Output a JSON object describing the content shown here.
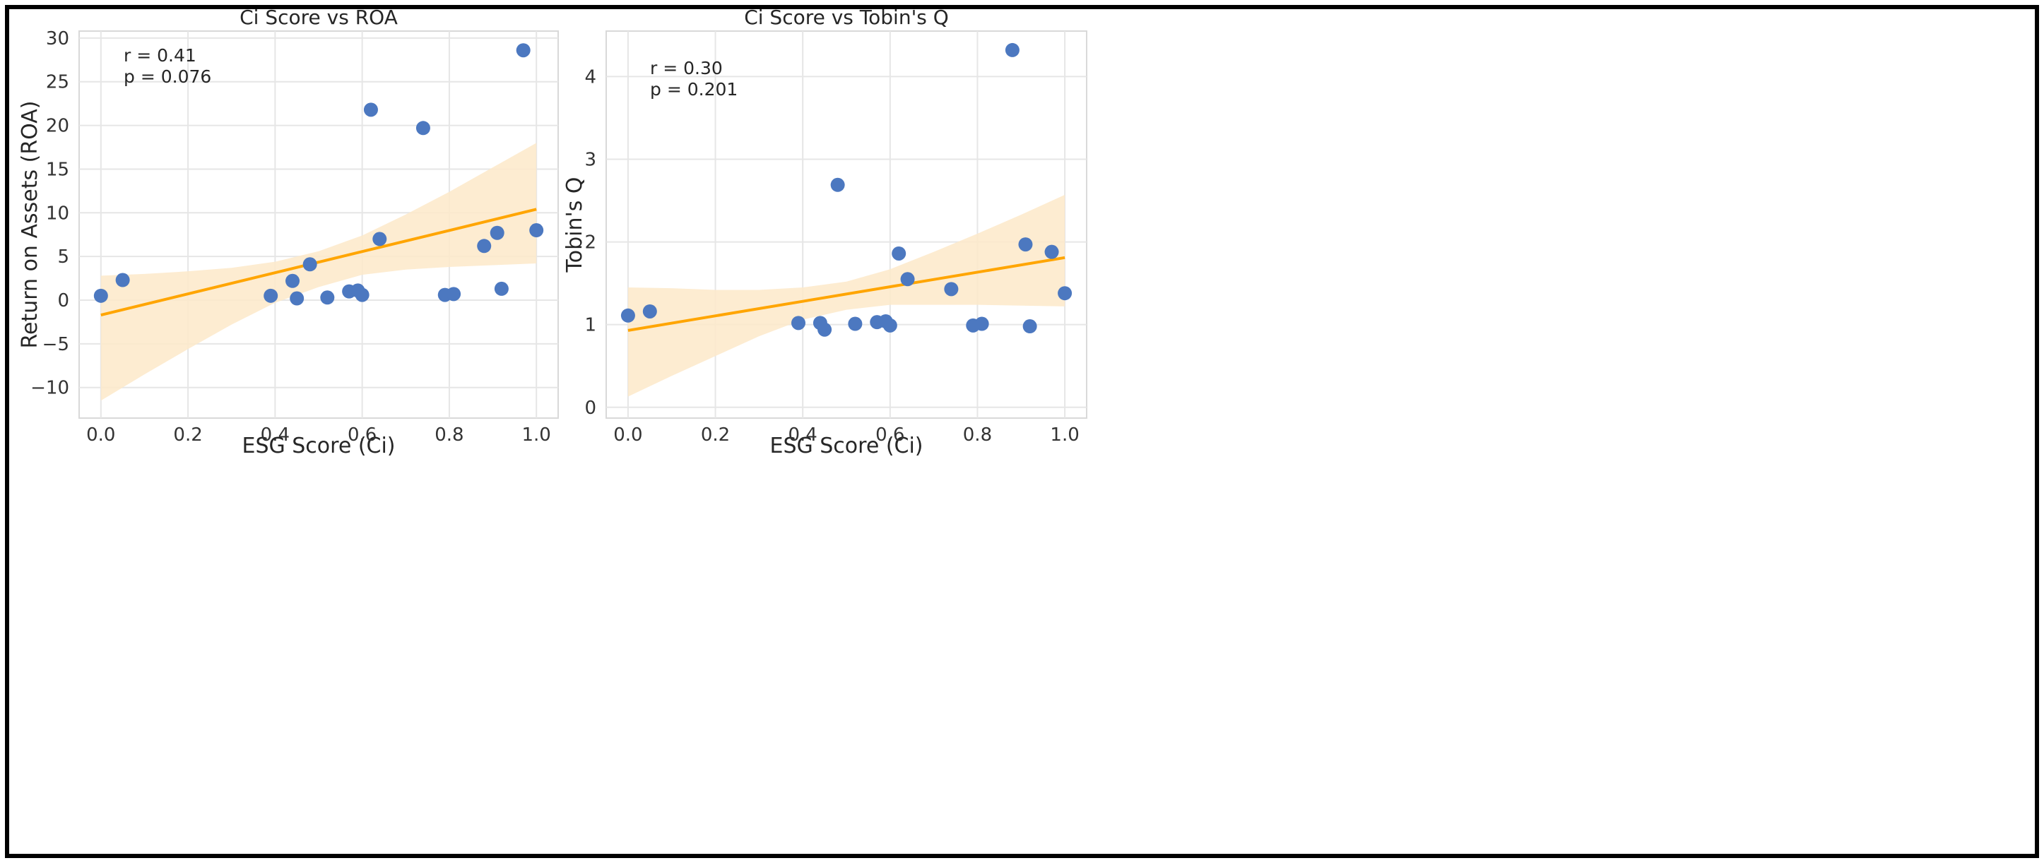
{
  "chart_data": [
    {
      "type": "scatter",
      "title": "Ci Score vs ROA",
      "xlabel": "ESG Score (Ci)",
      "ylabel": "Return on Assets (ROA)",
      "xlim": [
        -0.05,
        1.05
      ],
      "ylim": [
        -13.5,
        30.8
      ],
      "xticks": [
        0.0,
        0.2,
        0.4,
        0.6,
        0.8,
        1.0
      ],
      "xtick_labels": [
        "0.0",
        "0.2",
        "0.4",
        "0.6",
        "0.8",
        "1.0"
      ],
      "yticks": [
        -10,
        -5,
        0,
        5,
        10,
        15,
        20,
        25,
        30
      ],
      "ytick_labels": [
        "−10",
        "−5",
        "0",
        "5",
        "10",
        "15",
        "20",
        "25",
        "30"
      ],
      "grid": true,
      "annotation_lines": [
        "r = 0.41",
        "p = 0.076"
      ],
      "point_color": "#4c78c0",
      "x": [
        0.0,
        0.05,
        0.39,
        0.44,
        0.45,
        0.48,
        0.52,
        0.57,
        0.59,
        0.6,
        0.62,
        0.64,
        0.74,
        0.79,
        0.81,
        0.88,
        0.91,
        0.92,
        0.97,
        1.0
      ],
      "y": [
        0.5,
        2.3,
        0.5,
        2.2,
        0.2,
        4.1,
        0.3,
        1.0,
        1.1,
        0.6,
        21.8,
        7.0,
        19.7,
        0.6,
        0.7,
        6.2,
        7.7,
        1.3,
        28.6,
        8.0
      ],
      "regression": {
        "x": [
          0.0,
          1.0
        ],
        "y": [
          -1.7,
          10.4
        ],
        "color": "#ffa500"
      },
      "confidence_band": {
        "color": "#fde9c9",
        "x": [
          0.0,
          0.1,
          0.2,
          0.3,
          0.4,
          0.5,
          0.6,
          0.7,
          0.8,
          0.9,
          1.0
        ],
        "upper": [
          2.8,
          3.0,
          3.3,
          3.7,
          4.4,
          5.6,
          7.4,
          9.8,
          12.4,
          15.2,
          18.0
        ],
        "lower": [
          -11.5,
          -8.5,
          -5.6,
          -2.8,
          -0.3,
          1.5,
          2.9,
          3.5,
          3.8,
          4.0,
          4.2
        ]
      }
    },
    {
      "type": "scatter",
      "title": "Ci Score vs Tobin's Q",
      "xlabel": "ESG Score (Ci)",
      "ylabel": "Tobin's Q",
      "xlim": [
        -0.05,
        1.05
      ],
      "ylim": [
        -0.13,
        4.55
      ],
      "xticks": [
        0.0,
        0.2,
        0.4,
        0.6,
        0.8,
        1.0
      ],
      "xtick_labels": [
        "0.0",
        "0.2",
        "0.4",
        "0.6",
        "0.8",
        "1.0"
      ],
      "yticks": [
        0,
        1,
        2,
        3,
        4
      ],
      "ytick_labels": [
        "0",
        "1",
        "2",
        "3",
        "4"
      ],
      "grid": true,
      "annotation_lines": [
        "r = 0.30",
        "p = 0.201"
      ],
      "point_color": "#4c78c0",
      "x": [
        0.0,
        0.05,
        0.39,
        0.44,
        0.45,
        0.48,
        0.52,
        0.57,
        0.59,
        0.6,
        0.62,
        0.64,
        0.74,
        0.79,
        0.81,
        0.88,
        0.91,
        0.92,
        0.97,
        1.0
      ],
      "y": [
        1.11,
        1.16,
        1.02,
        1.02,
        0.94,
        2.69,
        1.01,
        1.03,
        1.04,
        0.99,
        1.86,
        1.55,
        1.43,
        0.99,
        1.01,
        4.32,
        1.97,
        0.98,
        1.88,
        1.38
      ],
      "regression": {
        "x": [
          0.0,
          1.0
        ],
        "y": [
          0.93,
          1.81
        ],
        "color": "#ffa500"
      },
      "confidence_band": {
        "color": "#fde9c9",
        "x": [
          0.0,
          0.1,
          0.2,
          0.3,
          0.4,
          0.5,
          0.6,
          0.7,
          0.8,
          0.9,
          1.0
        ],
        "upper": [
          1.45,
          1.44,
          1.42,
          1.42,
          1.45,
          1.52,
          1.67,
          1.88,
          2.1,
          2.33,
          2.57
        ],
        "lower": [
          0.13,
          0.38,
          0.62,
          0.86,
          1.06,
          1.18,
          1.24,
          1.24,
          1.24,
          1.23,
          1.22
        ]
      }
    }
  ]
}
